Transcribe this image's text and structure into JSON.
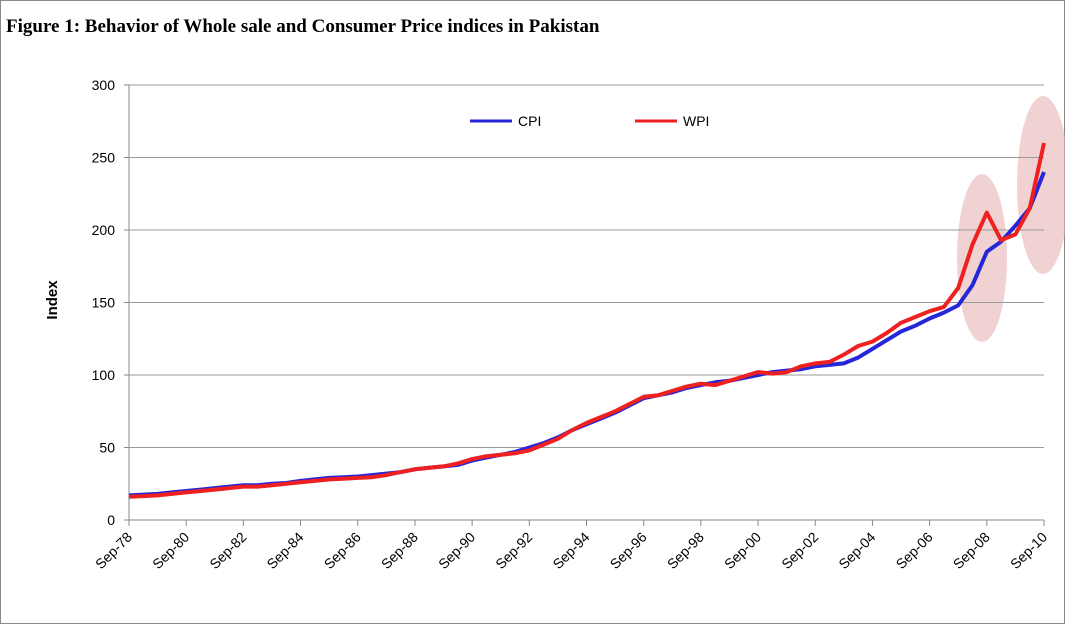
{
  "chart_data": {
    "type": "line",
    "title": "Figure 1: Behavior of Whole sale and Consumer  Price indices in Pakistan",
    "y_label": "Index",
    "categories": [
      "Sep-78",
      null,
      null,
      null,
      "Sep-80",
      null,
      null,
      null,
      "Sep-82",
      null,
      null,
      null,
      "Sep-84",
      null,
      null,
      null,
      "Sep-86",
      null,
      null,
      null,
      "Sep-88",
      null,
      null,
      null,
      "Sep-90",
      null,
      null,
      null,
      "Sep-92",
      null,
      null,
      null,
      "Sep-94",
      null,
      null,
      null,
      "Sep-96",
      null,
      null,
      null,
      "Sep-98",
      null,
      null,
      null,
      "Sep-00",
      null,
      null,
      null,
      "Sep-02",
      null,
      null,
      null,
      "Sep-04",
      null,
      null,
      null,
      "Sep-06",
      null,
      null,
      null,
      "Sep-08",
      null,
      null,
      null,
      "Sep-10"
    ],
    "series": [
      {
        "name": "CPI",
        "color": "#2626d9",
        "values": [
          17,
          17.5,
          18,
          19,
          20,
          21,
          22,
          23,
          24,
          24,
          25,
          25.5,
          27,
          28,
          29,
          29.5,
          30,
          31,
          32,
          33,
          35,
          36,
          37,
          38,
          41,
          43,
          45,
          47,
          50,
          53,
          57,
          62,
          66,
          70,
          74,
          79,
          84,
          86,
          88,
          91,
          93,
          95,
          96,
          98,
          100,
          102,
          103,
          104,
          106,
          107,
          108,
          112,
          118,
          124,
          130,
          134,
          139,
          143,
          148,
          162,
          185,
          192,
          203,
          215,
          240
        ]
      },
      {
        "name": "WPI",
        "color": "#ee2020",
        "values": [
          16,
          16.5,
          17,
          18,
          19,
          20,
          21,
          22,
          23,
          23,
          24,
          25,
          26,
          27,
          28,
          28.5,
          29,
          29.5,
          31,
          33,
          35,
          36,
          37,
          39,
          42,
          44,
          45,
          46,
          48,
          52,
          56,
          62,
          67,
          71,
          75,
          80,
          85,
          86,
          89,
          92,
          94,
          93,
          96,
          99,
          102,
          101,
          102,
          106,
          108,
          109,
          114,
          120,
          123,
          129,
          136,
          140,
          144,
          147,
          160,
          190,
          212,
          193,
          197,
          215,
          260
        ]
      }
    ],
    "ylim": [
      0,
      300
    ],
    "yticks": [
      0,
      50,
      100,
      150,
      200,
      250,
      300
    ],
    "grid": true,
    "legend": "top"
  }
}
